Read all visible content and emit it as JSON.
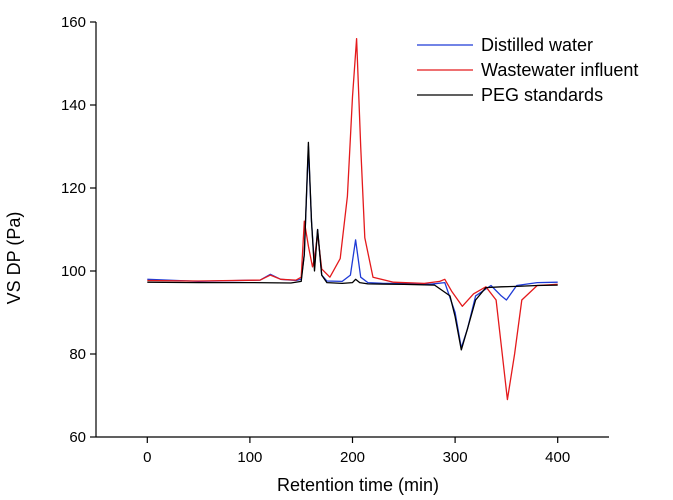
{
  "chart_data": {
    "type": "line",
    "xlabel": "Retention time (min)",
    "ylabel": "VS DP (Pa)",
    "xlim": [
      -50,
      450
    ],
    "ylim": [
      60,
      160
    ],
    "xticks": [
      0,
      100,
      200,
      300,
      400
    ],
    "yticks": [
      60,
      80,
      100,
      120,
      140,
      160
    ],
    "legend_position": "top-right",
    "series": [
      {
        "name": "Distilled water",
        "color": "#1f3bd6",
        "x": [
          0,
          50,
          110,
          120,
          130,
          145,
          150,
          153,
          157,
          160,
          163,
          166,
          170,
          175,
          190,
          198,
          203,
          208,
          215,
          230,
          250,
          275,
          290,
          300,
          306,
          312,
          320,
          335,
          345,
          350,
          360,
          380,
          400
        ],
        "y": [
          98,
          97.5,
          97.8,
          99.2,
          98,
          97.7,
          98,
          104,
          130,
          112,
          101,
          110,
          99,
          97.6,
          97.5,
          99,
          107.5,
          98.5,
          97.2,
          97,
          97,
          96.8,
          97.2,
          90,
          81.5,
          86,
          94,
          96.5,
          94,
          93,
          96.5,
          97.2,
          97.3
        ]
      },
      {
        "name": "Wastewater influent",
        "color": "#e41a1c",
        "x": [
          0,
          50,
          110,
          120,
          130,
          145,
          150,
          153,
          157,
          161,
          163,
          166,
          170,
          178,
          188,
          195,
          200,
          204,
          208,
          212,
          220,
          240,
          270,
          285,
          290,
          297,
          307,
          318,
          330,
          340,
          345,
          351,
          358,
          365,
          380,
          400
        ],
        "y": [
          97.7,
          97.6,
          97.8,
          99,
          98,
          97.8,
          98.5,
          112,
          106,
          101,
          103,
          109,
          100.5,
          98.5,
          103,
          118,
          142,
          156,
          130,
          108,
          98.5,
          97.3,
          97,
          97.5,
          98,
          95,
          91.5,
          94.5,
          96.2,
          93,
          82,
          69,
          80,
          93,
          96.5,
          96.8
        ]
      },
      {
        "name": "PEG standards",
        "color": "#000000",
        "x": [
          0,
          50,
          100,
          140,
          150,
          153,
          157,
          160,
          163,
          166,
          170,
          175,
          190,
          200,
          203,
          207,
          215,
          250,
          280,
          295,
          300,
          306,
          312,
          320,
          330,
          345,
          360,
          380,
          400
        ],
        "y": [
          97.3,
          97.2,
          97.2,
          97.1,
          97.5,
          104,
          131,
          112,
          100,
          110,
          99,
          97.2,
          97,
          97.2,
          98,
          97.2,
          96.9,
          96.8,
          96.6,
          94,
          89,
          81,
          86,
          93,
          96,
          96.2,
          96.3,
          96.5,
          96.6
        ]
      }
    ]
  }
}
